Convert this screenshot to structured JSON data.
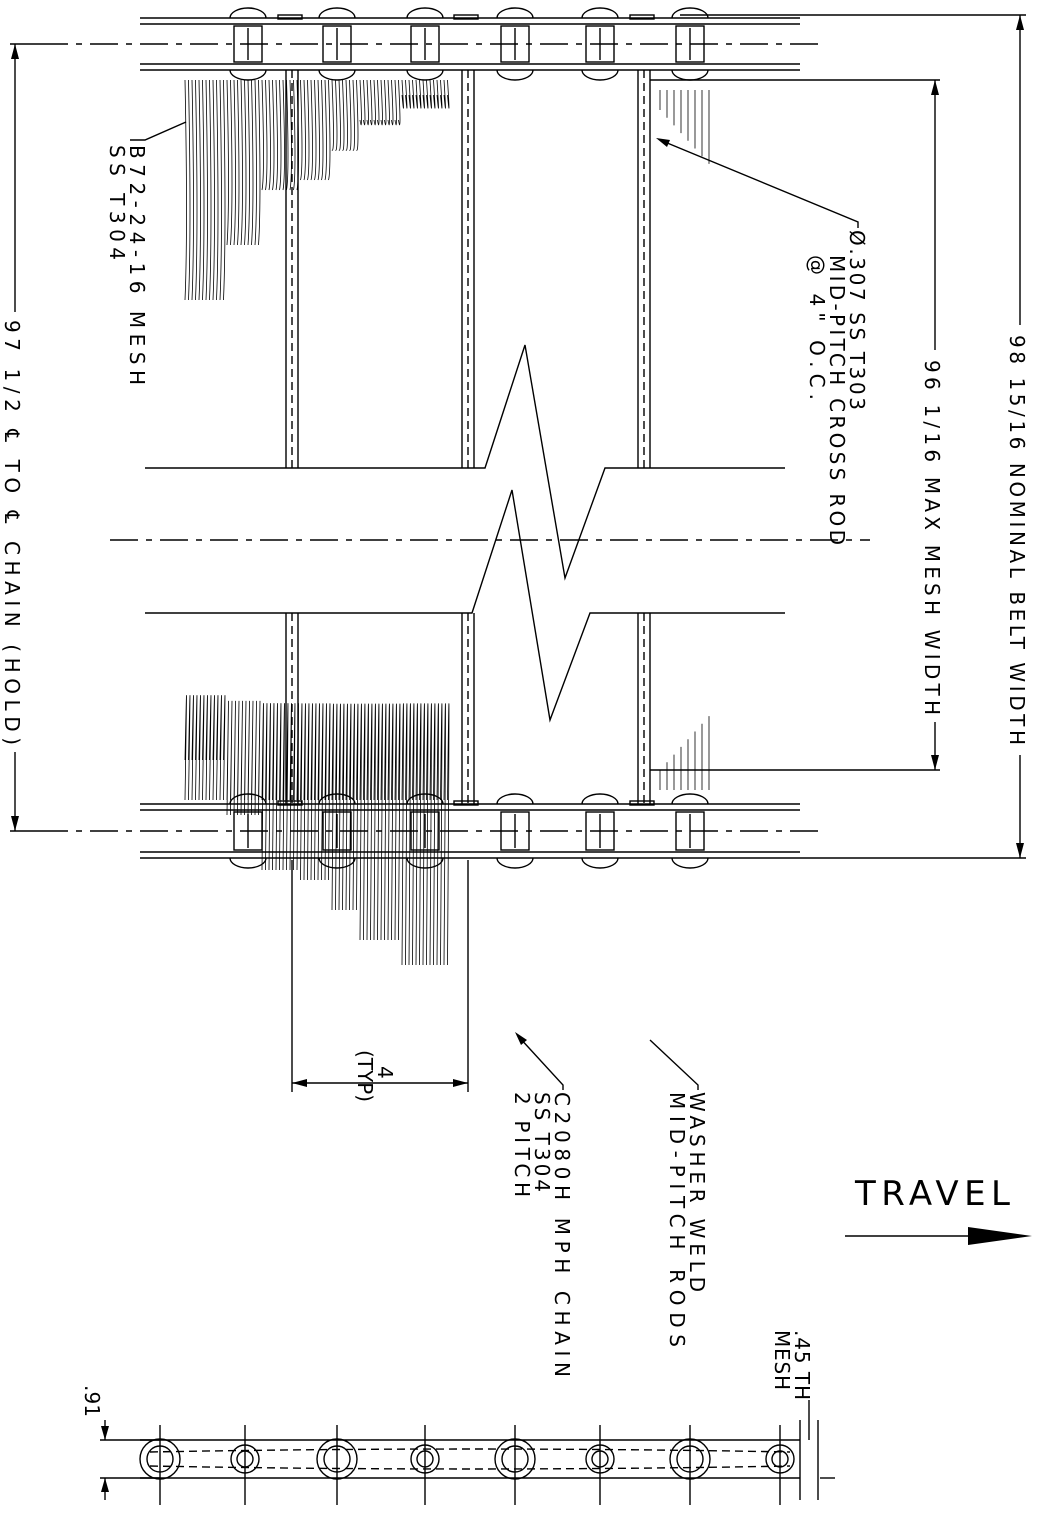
{
  "labels": {
    "belt_width": "98 15/16 NOMINAL BELT WIDTH",
    "mesh_width": "96 1/16 MAX MESH WIDTH",
    "cross_rod": [
      "Ø.307 SS T303",
      "MID-PITCH CROSS ROD",
      "@ 4\" O.C."
    ],
    "mesh": [
      "B72-24-16 MESH",
      "SS T304"
    ],
    "chain_centers": "97 1/2 ℄ TO ℄ CHAIN (HOLD)",
    "pitch": [
      "4",
      "(TYP)"
    ],
    "chain": [
      "C2080H MPH CHAIN",
      "SS T304",
      "2 PITCH"
    ],
    "washer": [
      "WASHER WELD",
      "MID-PITCH RODS"
    ],
    "travel": "TRAVEL",
    "mesh_thickness": [
      ".45 TH",
      "MESH"
    ],
    "chain_height": ".91"
  }
}
